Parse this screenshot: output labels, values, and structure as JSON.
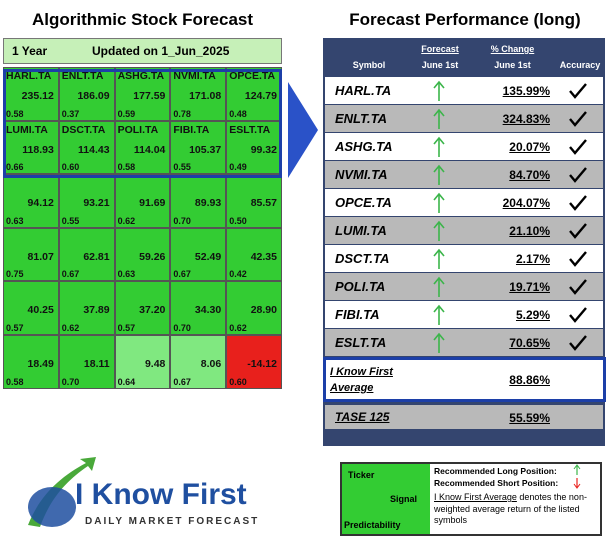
{
  "left": {
    "title": "Algorithmic Stock Forecast",
    "period": "1 Year",
    "updated": "Updated on 1_Jun_2025",
    "cells": [
      [
        {
          "ticker": "HARL.TA",
          "signal": "235.12",
          "predictability": "0.58",
          "color": "#33cc33"
        },
        {
          "ticker": "ENLT.TA",
          "signal": "186.09",
          "predictability": "0.37",
          "color": "#33cc33"
        },
        {
          "ticker": "ASHG.TA",
          "signal": "177.59",
          "predictability": "0.59",
          "color": "#33cc33"
        },
        {
          "ticker": "NVMI.TA",
          "signal": "171.08",
          "predictability": "0.78",
          "color": "#33cc33"
        },
        {
          "ticker": "OPCE.TA",
          "signal": "124.79",
          "predictability": "0.48",
          "color": "#33cc33"
        }
      ],
      [
        {
          "ticker": "LUMI.TA",
          "signal": "118.93",
          "predictability": "0.66",
          "color": "#33cc33"
        },
        {
          "ticker": "DSCT.TA",
          "signal": "114.43",
          "predictability": "0.60",
          "color": "#33cc33"
        },
        {
          "ticker": "POLI.TA",
          "signal": "114.04",
          "predictability": "0.58",
          "color": "#33cc33"
        },
        {
          "ticker": "FIBI.TA",
          "signal": "105.37",
          "predictability": "0.55",
          "color": "#33cc33"
        },
        {
          "ticker": "ESLT.TA",
          "signal": "99.32",
          "predictability": "0.49",
          "color": "#33cc33"
        }
      ],
      [
        {
          "signal": "94.12",
          "predictability": "0.63",
          "color": "#33cc33"
        },
        {
          "signal": "93.21",
          "predictability": "0.55",
          "color": "#33cc33"
        },
        {
          "signal": "91.69",
          "predictability": "0.62",
          "color": "#33cc33"
        },
        {
          "signal": "89.93",
          "predictability": "0.70",
          "color": "#33cc33"
        },
        {
          "signal": "85.57",
          "predictability": "0.50",
          "color": "#33cc33"
        }
      ],
      [
        {
          "signal": "81.07",
          "predictability": "0.75",
          "color": "#33cc33"
        },
        {
          "signal": "62.81",
          "predictability": "0.67",
          "color": "#33cc33"
        },
        {
          "signal": "59.26",
          "predictability": "0.63",
          "color": "#33cc33"
        },
        {
          "signal": "52.49",
          "predictability": "0.67",
          "color": "#33cc33"
        },
        {
          "signal": "42.35",
          "predictability": "0.42",
          "color": "#33cc33"
        }
      ],
      [
        {
          "signal": "40.25",
          "predictability": "0.57",
          "color": "#33cc33"
        },
        {
          "signal": "37.89",
          "predictability": "0.62",
          "color": "#33cc33"
        },
        {
          "signal": "37.20",
          "predictability": "0.57",
          "color": "#33cc33"
        },
        {
          "signal": "34.30",
          "predictability": "0.70",
          "color": "#33cc33"
        },
        {
          "signal": "28.90",
          "predictability": "0.62",
          "color": "#33cc33"
        }
      ],
      [
        {
          "signal": "18.49",
          "predictability": "0.58",
          "color": "#33cc33"
        },
        {
          "signal": "18.11",
          "predictability": "0.70",
          "color": "#33cc33"
        },
        {
          "signal": "9.48",
          "predictability": "0.64",
          "color": "#80e880"
        },
        {
          "signal": "8.06",
          "predictability": "0.67",
          "color": "#80e880"
        },
        {
          "signal": "-14.12",
          "predictability": "0.60",
          "color": "#e8201c"
        }
      ]
    ]
  },
  "right": {
    "title": "Forecast Performance (long)",
    "headers": {
      "symbol": "Symbol",
      "forecast": "Forecast",
      "forecast_date": "June 1st",
      "change": "% Change",
      "change_date": "June 1st",
      "accuracy": "Accuracy"
    },
    "rows": [
      [
        "HARL.TA",
        "135.99%"
      ],
      [
        "ENLT.TA",
        "324.83%"
      ],
      [
        "ASHG.TA",
        "20.07%"
      ],
      [
        "NVMI.TA",
        "84.70%"
      ],
      [
        "OPCE.TA",
        "204.07%"
      ],
      [
        "LUMI.TA",
        "21.10%"
      ],
      [
        "DSCT.TA",
        "2.17%"
      ],
      [
        "POLI.TA",
        "19.71%"
      ],
      [
        "FIBI.TA",
        "5.29%"
      ],
      [
        "ESLT.TA",
        "70.65%"
      ]
    ],
    "average": {
      "label": "I Know First Average",
      "change": "88.86%"
    },
    "benchmark": {
      "label": "TASE 125",
      "change": "55.59%"
    }
  },
  "legend": {
    "ticker": "Ticker",
    "signal": "Signal",
    "predictability": "Predictability",
    "long": "Recommended Long Position:",
    "short": "Recommended Short Position:",
    "average_link": "I Know First Average",
    "average_note": "denotes the non-weighted average return of the listed symbols"
  },
  "logo": {
    "name": "I Know First",
    "tagline": "DAILY MARKET FORECAST"
  }
}
